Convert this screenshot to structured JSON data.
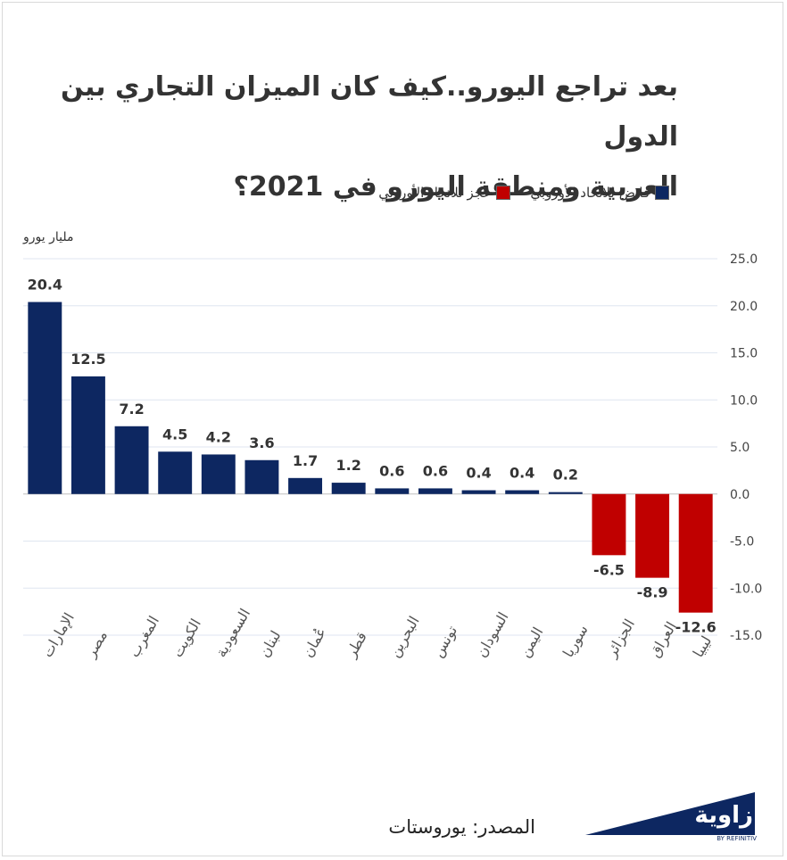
{
  "title_line1": "بعد تراجع اليورو..كيف كان الميزان التجاري بين الدول",
  "title_line2": "العربية ومنطقة اليورو في 2021؟",
  "legend": {
    "surplus": "فائض للاتحاد الأوروبي",
    "deficit": "عجز للاتحاد الأوروبي"
  },
  "unit_label": "مليار يورو",
  "source": "المصدر: يوروستات",
  "logo_text": "زاوية",
  "logo_sub": "BY REFINITIV",
  "colors": {
    "surplus": "#0d2761",
    "deficit": "#c00000"
  },
  "chart_data": {
    "type": "bar",
    "categories": [
      "الإمارات",
      "مصر",
      "المغرب",
      "الكويت",
      "السعودية",
      "لبنان",
      "عُمان",
      "قطر",
      "البحرين",
      "تونس",
      "السودان",
      "اليمن",
      "سوريا",
      "الجزائر",
      "العراق",
      "ليبيا"
    ],
    "values": [
      20.4,
      12.5,
      7.2,
      4.5,
      4.2,
      3.6,
      1.7,
      1.2,
      0.6,
      0.6,
      0.4,
      0.4,
      0.2,
      -6.5,
      -8.9,
      -12.6
    ],
    "value_labels": [
      "20.4",
      "12.5",
      "7.2",
      "4.5",
      "4.2",
      "3.6",
      "1.7",
      "1.2",
      "0.6",
      "0.6",
      "0.4",
      "0.4",
      "0.2",
      "-6.5",
      "-8.9",
      "-12.6"
    ],
    "ylim": [
      -15,
      25
    ],
    "yticks": [
      "25.0",
      "20.0",
      "15.0",
      "10.0",
      "5.0",
      "0.0",
      "-5.0",
      "-10.0",
      "-15.0"
    ],
    "grid": true,
    "legend_position": "top-right"
  }
}
